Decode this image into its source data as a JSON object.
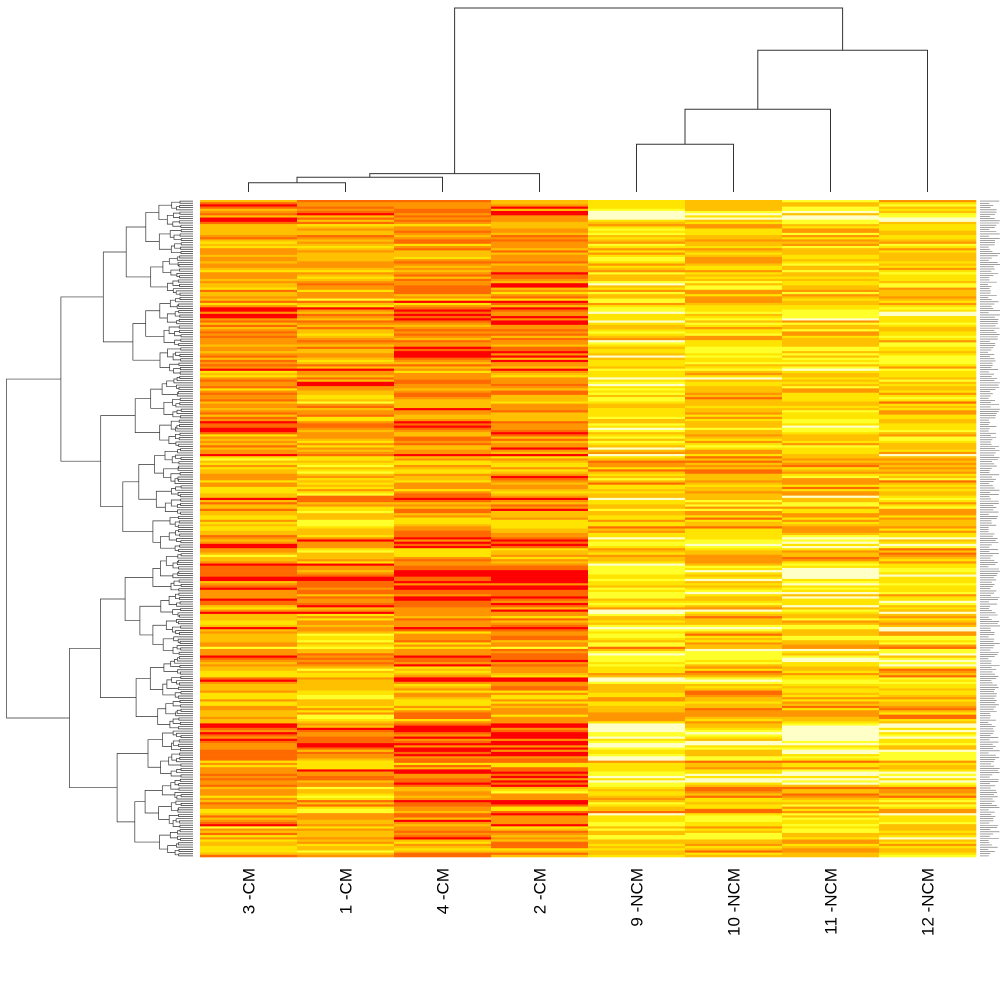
{
  "chart_data": {
    "type": "heatmap",
    "title": "",
    "xlabel": "",
    "ylabel": "",
    "columns": [
      "3 -CM",
      "1 -CM",
      "4 -CM",
      "2 -CM",
      "9 -NCM",
      "10 -NCM",
      "11 -NCM",
      "12 -NCM"
    ],
    "groups": [
      "CM",
      "CM",
      "CM",
      "CM",
      "NCM",
      "NCM",
      "NCM",
      "NCM"
    ],
    "row_count": 300,
    "palette": [
      "#ff0000",
      "#ff6a00",
      "#ff9500",
      "#ffc000",
      "#ffe400",
      "#ffff2a",
      "#ffffc8"
    ],
    "column_mean_level": [
      0.38,
      0.46,
      0.34,
      0.33,
      0.64,
      0.56,
      0.6,
      0.58
    ],
    "column_dendrogram": {
      "merges": [
        {
          "left": 0,
          "right": 1,
          "height": 0.05
        },
        {
          "left": "m0",
          "right": 2,
          "height": 0.08
        },
        {
          "left": "m1",
          "right": 3,
          "height": 0.1
        },
        {
          "left": 4,
          "right": 5,
          "height": 0.26
        },
        {
          "left": "m3",
          "right": 6,
          "height": 0.45
        },
        {
          "left": "m4",
          "right": 7,
          "height": 0.77
        },
        {
          "left": "m2",
          "right": "m5",
          "height": 1.0
        }
      ]
    },
    "row_labels_legible": false,
    "legend": "none"
  }
}
